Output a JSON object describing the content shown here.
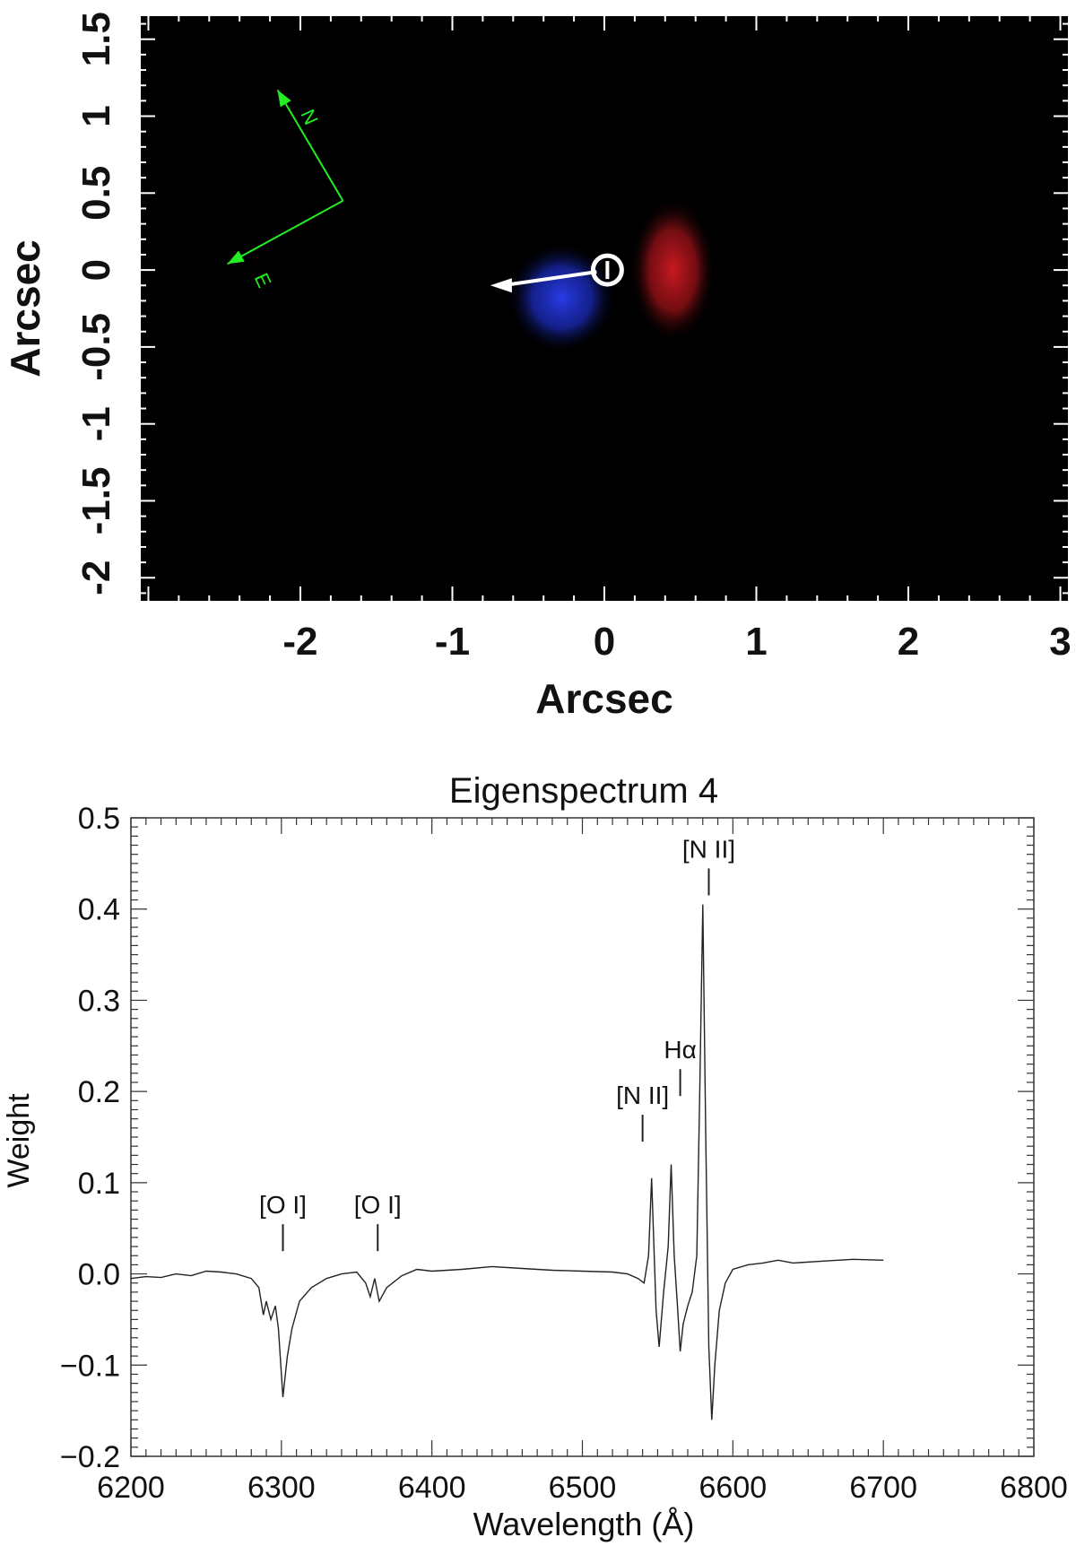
{
  "chart_data": [
    {
      "type": "heatmap",
      "xlabel": "Arcsec",
      "ylabel": "Arcsec",
      "xlim": [
        -3.05,
        3.05
      ],
      "ylim": [
        -2.15,
        1.65
      ],
      "xticks": [
        -2,
        -1,
        0,
        1,
        2,
        3
      ],
      "yticks": [
        -2,
        -1.5,
        -1,
        -0.5,
        0,
        0.5,
        1,
        1.5
      ],
      "background_color": "#000000",
      "blobs": [
        {
          "color": "#1a2fd6",
          "center": [
            -0.28,
            -0.18
          ],
          "radius": 0.36
        },
        {
          "color": "#c0151d",
          "center": [
            0.45,
            0.0
          ],
          "radius": 0.38
        }
      ],
      "marker": {
        "center": [
          0.02,
          0.0
        ],
        "color": "#ffffff",
        "arrow_to": [
          -0.75,
          -0.1
        ]
      },
      "compass": {
        "color": "#22ee22",
        "origin": [
          -1.72,
          0.45
        ],
        "north_to": [
          -2.15,
          1.17
        ],
        "east_to": [
          -2.48,
          0.04
        ],
        "north_label": "N",
        "east_label": "E"
      }
    },
    {
      "type": "line",
      "title": "Eigenspectrum 4",
      "xlabel": "Wavelength (Å)",
      "ylabel": "Weight",
      "xlim": [
        6200,
        6800
      ],
      "ylim": [
        -0.2,
        0.5
      ],
      "xticks": [
        6200,
        6300,
        6400,
        6500,
        6600,
        6700,
        6800
      ],
      "yticks": [
        -0.2,
        -0.1,
        0.0,
        0.1,
        0.2,
        0.3,
        0.4,
        0.5
      ],
      "series": [
        {
          "color": "#222222",
          "x": [
            6200,
            6210,
            6220,
            6230,
            6240,
            6250,
            6260,
            6270,
            6280,
            6285,
            6288,
            6290,
            6293,
            6296,
            6298,
            6301,
            6304,
            6307,
            6312,
            6320,
            6330,
            6340,
            6350,
            6356,
            6359,
            6362,
            6365,
            6370,
            6380,
            6390,
            6400,
            6420,
            6440,
            6460,
            6480,
            6500,
            6520,
            6530,
            6537,
            6541,
            6544,
            6546,
            6549,
            6551,
            6554,
            6557,
            6559,
            6561,
            6563,
            6565,
            6567,
            6570,
            6573,
            6576,
            6578,
            6580,
            6582,
            6584,
            6586,
            6588,
            6591,
            6595,
            6600,
            6610,
            6620,
            6630,
            6640,
            6660,
            6680,
            6700
          ],
          "y": [
            -0.005,
            -0.003,
            -0.004,
            0.0,
            -0.002,
            0.003,
            0.002,
            0.0,
            -0.005,
            -0.015,
            -0.045,
            -0.03,
            -0.05,
            -0.035,
            -0.06,
            -0.135,
            -0.09,
            -0.06,
            -0.03,
            -0.015,
            -0.005,
            0.0,
            0.002,
            -0.01,
            -0.025,
            -0.005,
            -0.03,
            -0.015,
            -0.002,
            0.005,
            0.003,
            0.005,
            0.008,
            0.006,
            0.004,
            0.003,
            0.002,
            0.0,
            -0.005,
            -0.01,
            0.02,
            0.105,
            -0.04,
            -0.08,
            -0.02,
            0.03,
            0.12,
            0.02,
            -0.03,
            -0.085,
            -0.055,
            -0.035,
            -0.02,
            0.02,
            0.2,
            0.405,
            0.15,
            -0.08,
            -0.16,
            -0.1,
            -0.04,
            -0.01,
            0.005,
            0.01,
            0.012,
            0.015,
            0.012,
            0.014,
            0.016,
            0.015
          ]
        }
      ],
      "annotations": [
        {
          "label": "[O I]",
          "x": 6301,
          "y": 0.025
        },
        {
          "label": "[O I]",
          "x": 6364,
          "y": 0.025
        },
        {
          "label": "[N II]",
          "x": 6540,
          "y": 0.145
        },
        {
          "label": "Hα",
          "x": 6565,
          "y": 0.195
        },
        {
          "label": "[N II]",
          "x": 6584,
          "y": 0.415
        }
      ]
    }
  ]
}
